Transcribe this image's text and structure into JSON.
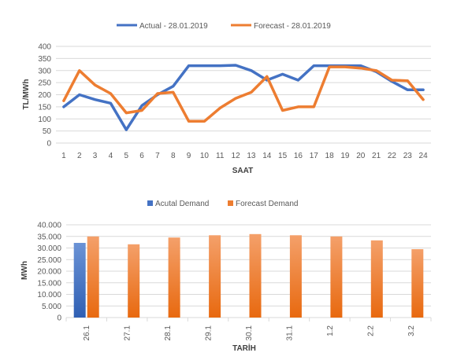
{
  "chart_data": [
    {
      "type": "line",
      "x": [
        "1",
        "2",
        "3",
        "4",
        "5",
        "6",
        "7",
        "8",
        "9",
        "10",
        "11",
        "12",
        "13",
        "14",
        "15",
        "16",
        "17",
        "18",
        "19",
        "20",
        "21",
        "22",
        "23",
        "24"
      ],
      "series": [
        {
          "name": "Actual - 28.01.2019",
          "color": "#4472c4",
          "values": [
            150,
            200,
            180,
            165,
            55,
            155,
            200,
            235,
            320,
            320,
            320,
            322,
            300,
            260,
            285,
            260,
            320,
            320,
            320,
            320,
            295,
            255,
            220,
            220
          ]
        },
        {
          "name": "Forecast - 28.01.2019",
          "color": "#ed7d31",
          "values": [
            175,
            300,
            240,
            205,
            125,
            135,
            205,
            210,
            90,
            90,
            145,
            185,
            210,
            275,
            135,
            150,
            150,
            315,
            315,
            310,
            300,
            260,
            258,
            180
          ]
        }
      ],
      "ylabel": "TL/MWh",
      "xlabel": "SAAT",
      "ylim": [
        0,
        400
      ],
      "yticks": [
        "0",
        "50",
        "100",
        "150",
        "200",
        "250",
        "300",
        "350",
        "400"
      ],
      "grid": true,
      "legend": "top"
    },
    {
      "type": "bar",
      "categories": [
        "26.1",
        "27.1",
        "28.1",
        "29.1",
        "30.1",
        "31.1",
        "1.2",
        "2.2",
        "3.2"
      ],
      "series": [
        {
          "name": "Acutal Demand",
          "color": "#4472c4",
          "values": [
            32200,
            null,
            null,
            null,
            null,
            null,
            null,
            null,
            null
          ]
        },
        {
          "name": "Forecast Demand",
          "color": "#ed7d31",
          "values": [
            35000,
            31600,
            34500,
            35500,
            36000,
            35500,
            35000,
            33300,
            29500
          ]
        }
      ],
      "ylabel": "MWh",
      "xlabel": "TARİH",
      "ylim": [
        0,
        40000
      ],
      "yticks": [
        "0",
        "5.000",
        "10.000",
        "15.000",
        "20.000",
        "25.000",
        "30.000",
        "35.000",
        "40.000"
      ],
      "grid": true,
      "legend": "top"
    }
  ]
}
